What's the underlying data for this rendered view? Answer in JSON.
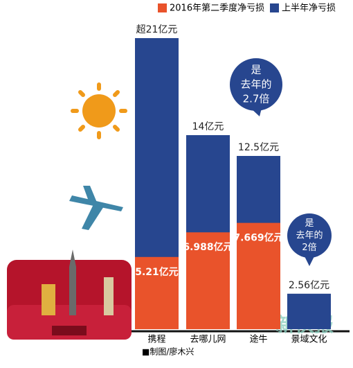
{
  "chart_data": {
    "type": "bar",
    "categories": [
      "携程",
      "去哪儿网",
      "途牛",
      "景域文化"
    ],
    "series": [
      {
        "name": "上半年净亏损",
        "color": "#27468f",
        "values": [
          21,
          14,
          12.5,
          2.56
        ],
        "value_labels": [
          "超21亿元",
          "14亿元",
          "12.5亿元",
          "2.56亿元"
        ]
      },
      {
        "name": "2016年第二季度净亏损",
        "color": "#e9532b",
        "values": [
          5.21,
          6.988,
          7.669,
          null
        ],
        "value_labels": [
          "5.21亿元",
          "6.988亿元",
          "7.669亿元",
          null
        ]
      }
    ],
    "ylim": [
      0,
      21
    ],
    "annotations": [
      [
        "是",
        "去年的",
        "2.7倍"
      ],
      [
        "是",
        "去年的",
        "2倍"
      ]
    ],
    "source": "■制图/廖木兴",
    "watermark": "新快报"
  }
}
